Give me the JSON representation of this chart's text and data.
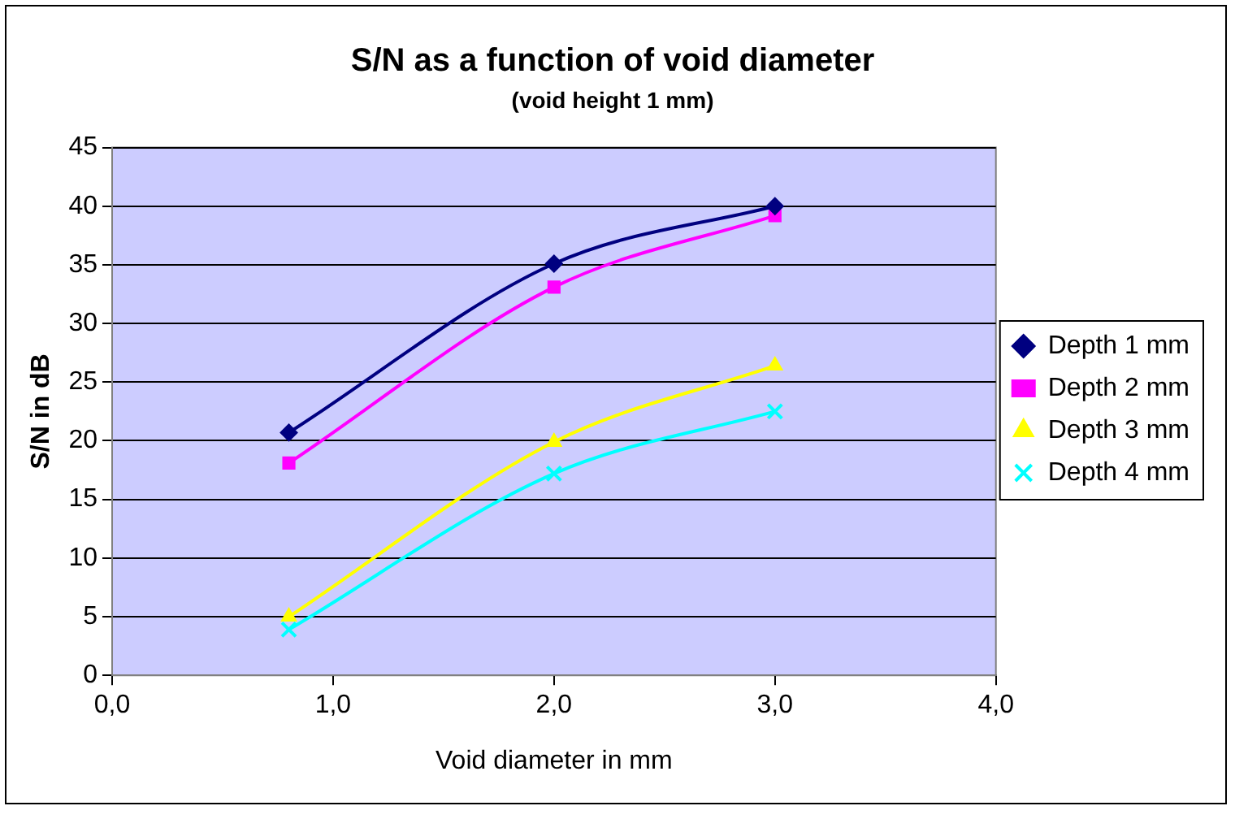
{
  "chart_data": {
    "type": "line",
    "title": "S/N as a function of void diameter",
    "subtitle": "(void height 1 mm)",
    "xlabel": "Void diameter in mm",
    "ylabel": "S/N in dB",
    "xlim": [
      0,
      4
    ],
    "xticks": [
      {
        "value": 0,
        "label": "0,0"
      },
      {
        "value": 1,
        "label": "1,0"
      },
      {
        "value": 2,
        "label": "2,0"
      },
      {
        "value": 3,
        "label": "3,0"
      },
      {
        "value": 4,
        "label": "4,0"
      }
    ],
    "ylim": [
      0,
      45
    ],
    "yticks": [
      0,
      5,
      10,
      15,
      20,
      25,
      30,
      35,
      40,
      45
    ],
    "grid": "y",
    "legend": "right",
    "x": [
      0.8,
      2,
      3
    ],
    "series": [
      {
        "name": "Depth 1 mm",
        "color": "#000080",
        "marker": "diamond",
        "values": [
          20.7,
          35.1,
          40.0
        ]
      },
      {
        "name": "Depth 2 mm",
        "color": "#ff00ff",
        "marker": "square",
        "values": [
          18.1,
          33.1,
          39.2
        ]
      },
      {
        "name": "Depth 3 mm",
        "color": "#ffff00",
        "marker": "triangle",
        "values": [
          5.0,
          19.9,
          26.4
        ]
      },
      {
        "name": "Depth 4 mm",
        "color": "#00ffff",
        "marker": "cross",
        "values": [
          3.9,
          17.2,
          22.5
        ]
      }
    ]
  }
}
